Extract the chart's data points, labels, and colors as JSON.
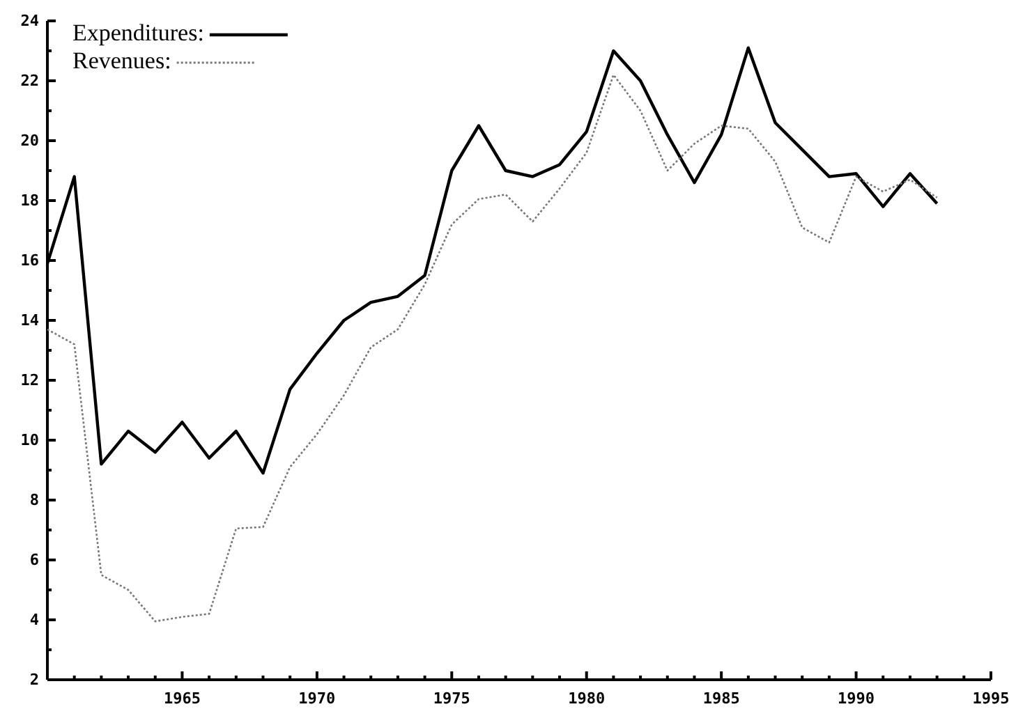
{
  "chart_data": {
    "type": "line",
    "x": [
      1960,
      1961,
      1962,
      1963,
      1964,
      1965,
      1966,
      1967,
      1968,
      1969,
      1970,
      1971,
      1972,
      1973,
      1974,
      1975,
      1976,
      1977,
      1978,
      1979,
      1980,
      1981,
      1982,
      1983,
      1984,
      1985,
      1986,
      1987,
      1988,
      1989,
      1990,
      1991,
      1992,
      1993
    ],
    "series": [
      {
        "name": "Expenditures:",
        "color": "#000000",
        "line_style": "solid",
        "values": [
          15.9,
          18.8,
          9.2,
          10.3,
          9.6,
          10.6,
          9.4,
          10.3,
          8.9,
          11.7,
          12.9,
          14.0,
          14.6,
          14.8,
          15.5,
          19.0,
          20.5,
          19.0,
          18.8,
          19.2,
          20.3,
          23.0,
          22.0,
          20.2,
          18.6,
          20.2,
          23.1,
          20.6,
          19.7,
          18.8,
          18.9,
          17.8,
          18.9,
          17.9
        ]
      },
      {
        "name": "Revenues:",
        "color": "#777777",
        "line_style": "dotted",
        "values": [
          13.7,
          13.2,
          5.5,
          5.0,
          3.95,
          4.1,
          4.2,
          7.05,
          7.1,
          9.1,
          10.2,
          11.5,
          13.1,
          13.7,
          15.2,
          17.2,
          18.05,
          18.2,
          17.3,
          18.4,
          19.6,
          22.2,
          21.0,
          19.0,
          19.9,
          20.5,
          20.4,
          19.3,
          17.1,
          16.6,
          18.8,
          18.3,
          18.7,
          18.1
        ]
      }
    ],
    "xlim": [
      1960,
      1995
    ],
    "xticks": [
      {
        "value": 1961,
        "label": null
      },
      {
        "value": 1962,
        "label": null
      },
      {
        "value": 1963,
        "label": null
      },
      {
        "value": 1964,
        "label": null
      },
      1965,
      {
        "value": 1966,
        "label": null
      },
      {
        "value": 1967,
        "label": null
      },
      {
        "value": 1968,
        "label": null
      },
      {
        "value": 1969,
        "label": null
      },
      1970,
      {
        "value": 1971,
        "label": null
      },
      {
        "value": 1972,
        "label": null
      },
      {
        "value": 1973,
        "label": null
      },
      {
        "value": 1974,
        "label": null
      },
      1975,
      {
        "value": 1976,
        "label": null
      },
      {
        "value": 1977,
        "label": null
      },
      {
        "value": 1978,
        "label": null
      },
      {
        "value": 1979,
        "label": null
      },
      1980,
      {
        "value": 1981,
        "label": null
      },
      {
        "value": 1982,
        "label": null
      },
      {
        "value": 1983,
        "label": null
      },
      {
        "value": 1984,
        "label": null
      },
      1985,
      {
        "value": 1986,
        "label": null
      },
      {
        "value": 1987,
        "label": null
      },
      {
        "value": 1988,
        "label": null
      },
      {
        "value": 1989,
        "label": null
      },
      1990,
      {
        "value": 1991,
        "label": null
      },
      {
        "value": 1992,
        "label": null
      },
      {
        "value": 1993,
        "label": null
      },
      {
        "value": 1994,
        "label": null
      },
      1995
    ],
    "ylim": [
      2,
      24
    ],
    "yticks": [
      2,
      {
        "value": 3,
        "label": null
      },
      4,
      {
        "value": 5,
        "label": null
      },
      6,
      {
        "value": 7,
        "label": null
      },
      8,
      {
        "value": 9,
        "label": null
      },
      10,
      {
        "value": 11,
        "label": null
      },
      12,
      {
        "value": 13,
        "label": null
      },
      14,
      {
        "value": 15,
        "label": null
      },
      16,
      {
        "value": 17,
        "label": null
      },
      18,
      {
        "value": 19,
        "label": null
      },
      20,
      {
        "value": 21,
        "label": null
      },
      22,
      {
        "value": 23,
        "label": null
      },
      24
    ],
    "grid": false,
    "legend": "top left",
    "marker": "none"
  }
}
